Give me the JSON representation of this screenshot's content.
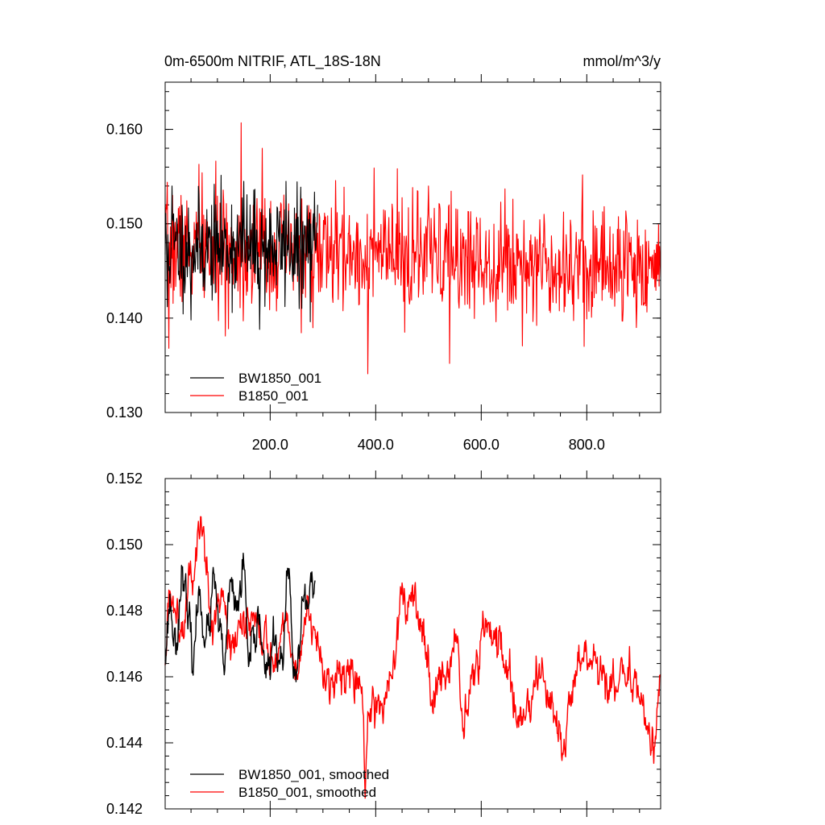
{
  "colors": {
    "background": "#ffffff",
    "axes": "#000000",
    "BW1850_001": "#000000",
    "B1850_001": "#ff0000"
  },
  "chart_data": [
    {
      "type": "line",
      "id": "top",
      "title_left": "0m-6500m NITRIF, ATL_18S-18N",
      "title_right": "mmol/m^3/y",
      "xlabel": "",
      "ylabel": "",
      "xlim": [
        1,
        940
      ],
      "ylim": [
        0.13,
        0.165
      ],
      "x_ticks": [
        200,
        400,
        600,
        800
      ],
      "x_tick_labels": [
        "200.0",
        "400.0",
        "600.0",
        "800.0"
      ],
      "y_ticks": [
        0.13,
        0.14,
        0.15,
        0.16
      ],
      "y_tick_labels": [
        "0.130",
        "0.140",
        "0.150",
        "0.160"
      ],
      "legend_position": "bottom-left",
      "series": [
        {
          "name": "BW1850_001",
          "color": "#000000",
          "x_start": 1,
          "x_end": 290,
          "n": 290,
          "generator": {
            "mean": 0.1475,
            "noise": 0.0028,
            "seed": 11,
            "spikes": [
              [
                5,
                0.1412
              ],
              [
                14,
                0.154
              ],
              [
                50,
                0.1398
              ],
              [
                150,
                0.1545
              ],
              [
                180,
                0.1388
              ],
              [
                230,
                0.1545
              ],
              [
                255,
                0.141
              ],
              [
                290,
                0.152
              ]
            ]
          }
        },
        {
          "name": "B1850_001",
          "color": "#ff0000",
          "x_start": 1,
          "x_end": 940,
          "n": 940,
          "generator": {
            "mean_start": 0.1475,
            "mean_end": 0.1455,
            "noise": 0.003,
            "seed": 7,
            "spikes": [
              [
                8,
                0.1368
              ],
              [
                145,
                0.1607
              ],
              [
                185,
                0.158
              ],
              [
                385,
                0.1341
              ],
              [
                540,
                0.1352
              ],
              [
                500,
                0.154
              ],
              [
                455,
                0.1385
              ],
              [
                795,
                0.137
              ],
              [
                65,
                0.1563
              ],
              [
                115,
                0.1381
              ]
            ]
          }
        }
      ]
    },
    {
      "type": "line",
      "id": "bottom",
      "xlabel": "",
      "ylabel": "",
      "xlim": [
        1,
        940
      ],
      "ylim": [
        0.142,
        0.152
      ],
      "x_ticks": [
        200,
        400,
        600,
        800
      ],
      "y_ticks": [
        0.142,
        0.144,
        0.146,
        0.148,
        0.15,
        0.152
      ],
      "y_tick_labels": [
        "0.142",
        "0.144",
        "0.146",
        "0.148",
        "0.150",
        "0.152"
      ],
      "legend_position": "bottom-left",
      "series": [
        {
          "name": "BW1850_001, smoothed",
          "color": "#000000",
          "x_start": 1,
          "x_end": 285,
          "n": 285,
          "anchors": [
            [
              1,
              0.1468
            ],
            [
              10,
              0.1482
            ],
            [
              20,
              0.147
            ],
            [
              35,
              0.1493
            ],
            [
              45,
              0.1475
            ],
            [
              55,
              0.1466
            ],
            [
              65,
              0.1485
            ],
            [
              80,
              0.1472
            ],
            [
              95,
              0.1488
            ],
            [
              105,
              0.147
            ],
            [
              115,
              0.1465
            ],
            [
              125,
              0.1488
            ],
            [
              135,
              0.148
            ],
            [
              150,
              0.1492
            ],
            [
              160,
              0.1462
            ],
            [
              170,
              0.147
            ],
            [
              180,
              0.1478
            ],
            [
              195,
              0.146
            ],
            [
              210,
              0.1472
            ],
            [
              220,
              0.1462
            ],
            [
              235,
              0.149
            ],
            [
              245,
              0.146
            ],
            [
              255,
              0.1462
            ],
            [
              262,
              0.1485
            ],
            [
              270,
              0.148
            ],
            [
              280,
              0.149
            ],
            [
              285,
              0.1489
            ]
          ],
          "jitter": 0.0006,
          "seed": 23
        },
        {
          "name": "B1850_001, smoothed",
          "color": "#ff0000",
          "x_start": 1,
          "x_end": 940,
          "n": 940,
          "anchors": [
            [
              1,
              0.1464
            ],
            [
              10,
              0.1485
            ],
            [
              30,
              0.1478
            ],
            [
              50,
              0.149
            ],
            [
              70,
              0.1505
            ],
            [
              90,
              0.1478
            ],
            [
              110,
              0.1487
            ],
            [
              130,
              0.1468
            ],
            [
              150,
              0.1475
            ],
            [
              170,
              0.148
            ],
            [
              190,
              0.1472
            ],
            [
              210,
              0.1465
            ],
            [
              230,
              0.1478
            ],
            [
              250,
              0.1462
            ],
            [
              270,
              0.1478
            ],
            [
              290,
              0.1468
            ],
            [
              310,
              0.1458
            ],
            [
              330,
              0.1462
            ],
            [
              350,
              0.1463
            ],
            [
              370,
              0.1456
            ],
            [
              390,
              0.145
            ],
            [
              410,
              0.1448
            ],
            [
              430,
              0.1462
            ],
            [
              450,
              0.148
            ],
            [
              470,
              0.1485
            ],
            [
              490,
              0.1472
            ],
            [
              510,
              0.1455
            ],
            [
              530,
              0.146
            ],
            [
              550,
              0.1474
            ],
            [
              570,
              0.145
            ],
            [
              590,
              0.1462
            ],
            [
              610,
              0.1475
            ],
            [
              630,
              0.147
            ],
            [
              650,
              0.1462
            ],
            [
              670,
              0.1448
            ],
            [
              690,
              0.1452
            ],
            [
              710,
              0.146
            ],
            [
              730,
              0.1452
            ],
            [
              750,
              0.144
            ],
            [
              770,
              0.1455
            ],
            [
              790,
              0.1464
            ],
            [
              810,
              0.1462
            ],
            [
              830,
              0.146
            ],
            [
              850,
              0.1456
            ],
            [
              870,
              0.1462
            ],
            [
              890,
              0.1458
            ],
            [
              910,
              0.145
            ],
            [
              925,
              0.1438
            ],
            [
              940,
              0.1455
            ]
          ],
          "spikes": [
            [
              380,
              0.1425
            ],
            [
              450,
              0.1488
            ],
            [
              565,
              0.1443
            ],
            [
              600,
              0.1478
            ],
            [
              760,
              0.1436
            ]
          ],
          "jitter": 0.0006,
          "seed": 5
        }
      ]
    }
  ]
}
